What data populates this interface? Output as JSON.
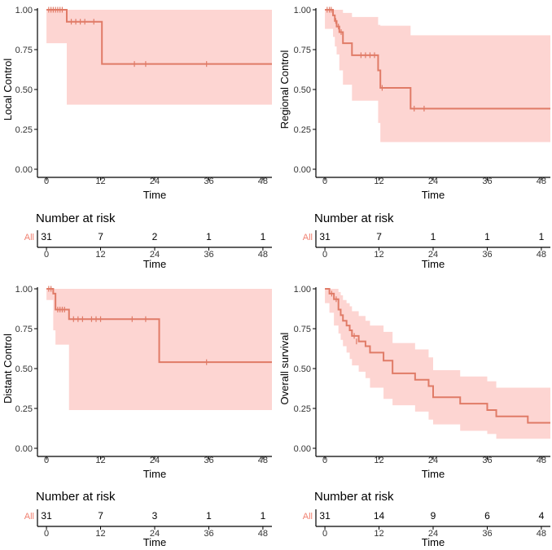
{
  "colors": {
    "line": "#E07B67",
    "band": "#FDD5D2",
    "label": "#F08070",
    "axis": "#000000"
  },
  "chart_data": [
    {
      "type": "line",
      "step": true,
      "ylabel": "Local Control",
      "xlabel": "Time",
      "xlim": [
        -2,
        50
      ],
      "ylim": [
        0,
        1
      ],
      "xticks": [
        0,
        12,
        24,
        36,
        48
      ],
      "yticks": [
        0,
        0.25,
        0.5,
        0.75,
        1
      ],
      "ytick_labels": [
        "0.00",
        "0.25",
        "0.50",
        "0.75",
        "1.00"
      ],
      "series": [
        {
          "x": [
            0,
            4.5,
            12.3,
            50
          ],
          "y": [
            1.0,
            0.925,
            0.66,
            0.66
          ]
        }
      ],
      "ci_lower": {
        "x": [
          0,
          4.5,
          12.3,
          50
        ],
        "y": [
          1.0,
          0.79,
          0.405,
          0.405
        ]
      },
      "ci_upper": {
        "x": [
          0,
          4.5,
          12.3,
          50
        ],
        "y": [
          1.0,
          1.0,
          1.0,
          1.0
        ]
      },
      "censored": {
        "x": [
          0.5,
          1,
          1.5,
          2,
          2.5,
          3,
          3.5,
          5.5,
          6.5,
          7.5,
          8.5,
          10.5,
          19.5,
          22,
          35.5
        ],
        "y": [
          1,
          1,
          1,
          1,
          1,
          1,
          1,
          0.925,
          0.925,
          0.925,
          0.925,
          0.925,
          0.66,
          0.66,
          0.66
        ]
      },
      "risk_table": {
        "title": "Number at risk",
        "strata": "All",
        "times": [
          0,
          12,
          24,
          36,
          48
        ],
        "counts": [
          "31",
          "7",
          "2",
          "1",
          "1"
        ]
      }
    },
    {
      "type": "line",
      "step": true,
      "ylabel": "Regional Control",
      "xlabel": "Time",
      "xlim": [
        -2,
        50
      ],
      "ylim": [
        0,
        1
      ],
      "xticks": [
        0,
        12,
        24,
        36,
        48
      ],
      "yticks": [
        0,
        0.25,
        0.5,
        0.75,
        1
      ],
      "ytick_labels": [
        "0.00",
        "0.25",
        "0.50",
        "0.75",
        "1.00"
      ],
      "series": [
        {
          "x": [
            0,
            1.8,
            2.2,
            2.6,
            3.2,
            4,
            6,
            11.8,
            12.3,
            19,
            50
          ],
          "y": [
            1.0,
            0.965,
            0.93,
            0.895,
            0.86,
            0.79,
            0.715,
            0.62,
            0.51,
            0.38,
            0.38
          ]
        }
      ],
      "ci_lower": {
        "x": [
          0,
          1.8,
          2.2,
          2.6,
          3.2,
          4,
          6,
          11.8,
          12.3,
          19,
          50
        ],
        "y": [
          1.0,
          0.88,
          0.83,
          0.77,
          0.72,
          0.62,
          0.53,
          0.43,
          0.29,
          0.17,
          0.17
        ]
      },
      "ci_upper": {
        "x": [
          0,
          1.8,
          2.2,
          2.6,
          3.2,
          4,
          6,
          11.8,
          12.3,
          19,
          50
        ],
        "y": [
          1.0,
          1.0,
          1.0,
          1.0,
          1.0,
          0.98,
          0.955,
          0.905,
          0.9,
          0.84,
          0.84
        ]
      },
      "censored": {
        "x": [
          0.5,
          1,
          1.4,
          2.4,
          3,
          3.6,
          8,
          9,
          10,
          11,
          12.7,
          19.8,
          22
        ],
        "y": [
          1,
          1,
          1,
          0.93,
          0.895,
          0.86,
          0.715,
          0.715,
          0.715,
          0.715,
          0.51,
          0.38,
          0.38
        ]
      },
      "risk_table": {
        "title": "Number at risk",
        "strata": "All",
        "times": [
          0,
          12,
          24,
          36,
          48
        ],
        "counts": [
          "31",
          "7",
          "1",
          "1",
          "1"
        ]
      }
    },
    {
      "type": "line",
      "step": true,
      "ylabel": "Distant Control",
      "xlabel": "Time",
      "xlim": [
        -2,
        50
      ],
      "ylim": [
        0,
        1
      ],
      "xticks": [
        0,
        12,
        24,
        36,
        48
      ],
      "yticks": [
        0,
        0.25,
        0.5,
        0.75,
        1
      ],
      "ytick_labels": [
        "0.00",
        "0.25",
        "0.50",
        "0.75",
        "1.00"
      ],
      "series": [
        {
          "x": [
            0,
            1.5,
            2,
            5,
            25,
            50
          ],
          "y": [
            1.0,
            0.97,
            0.87,
            0.81,
            0.54,
            0.54
          ]
        }
      ],
      "ci_lower": {
        "x": [
          0,
          1.5,
          2,
          5,
          25,
          50
        ],
        "y": [
          1.0,
          0.93,
          0.74,
          0.65,
          0.24,
          0.24
        ]
      },
      "ci_upper": {
        "x": [
          0,
          1.5,
          2,
          5,
          25,
          50
        ],
        "y": [
          1.0,
          1.0,
          1.0,
          1.0,
          1.0,
          1.0
        ]
      },
      "censored": {
        "x": [
          0.5,
          1,
          2.5,
          3,
          3.5,
          4,
          6,
          7,
          8,
          10,
          11,
          12,
          19,
          22,
          35.5
        ],
        "y": [
          1,
          1,
          0.87,
          0.87,
          0.87,
          0.87,
          0.81,
          0.81,
          0.81,
          0.81,
          0.81,
          0.81,
          0.81,
          0.81,
          0.54
        ]
      },
      "risk_table": {
        "title": "Number at risk",
        "strata": "All",
        "times": [
          0,
          12,
          24,
          36,
          48
        ],
        "counts": [
          "31",
          "7",
          "3",
          "1",
          "1"
        ]
      }
    },
    {
      "type": "line",
      "step": true,
      "ylabel": "Overall survival",
      "xlabel": "Time",
      "xlim": [
        -2,
        50
      ],
      "ylim": [
        0,
        1
      ],
      "xticks": [
        0,
        12,
        24,
        36,
        48
      ],
      "yticks": [
        0,
        0.25,
        0.5,
        0.75,
        1
      ],
      "ytick_labels": [
        "0.00",
        "0.25",
        "0.50",
        "0.75",
        "1.00"
      ],
      "series": [
        {
          "x": [
            0,
            1,
            2,
            3,
            3.5,
            4,
            4.8,
            5.5,
            6,
            7.5,
            9,
            10,
            13,
            15,
            20,
            23,
            24,
            30,
            36,
            38,
            45,
            50
          ],
          "y": [
            1.0,
            0.97,
            0.935,
            0.87,
            0.835,
            0.8,
            0.77,
            0.74,
            0.705,
            0.67,
            0.64,
            0.6,
            0.55,
            0.47,
            0.43,
            0.39,
            0.32,
            0.28,
            0.24,
            0.2,
            0.16,
            0.16
          ]
        }
      ],
      "ci_lower": {
        "x": [
          0,
          1,
          2,
          3,
          3.5,
          4,
          4.8,
          5.5,
          6,
          7.5,
          9,
          10,
          13,
          15,
          20,
          23,
          24,
          30,
          36,
          38,
          45,
          50
        ],
        "y": [
          1.0,
          0.91,
          0.85,
          0.77,
          0.72,
          0.68,
          0.64,
          0.6,
          0.56,
          0.52,
          0.48,
          0.44,
          0.38,
          0.31,
          0.27,
          0.23,
          0.18,
          0.15,
          0.11,
          0.09,
          0.06,
          0.06
        ]
      },
      "ci_upper": {
        "x": [
          0,
          1,
          2,
          3,
          3.5,
          4,
          4.8,
          5.5,
          6,
          7.5,
          9,
          10,
          13,
          15,
          20,
          23,
          24,
          30,
          36,
          38,
          45,
          50
        ],
        "y": [
          1.0,
          1.0,
          1.0,
          0.98,
          0.96,
          0.93,
          0.91,
          0.89,
          0.86,
          0.83,
          0.8,
          0.77,
          0.73,
          0.66,
          0.62,
          0.57,
          0.49,
          0.45,
          0.42,
          0.38,
          0.38,
          0.38
        ]
      },
      "censored": {
        "x": [
          1.5,
          2.5,
          6.5,
          7
        ],
        "y": [
          0.97,
          0.935,
          0.705,
          0.67
        ]
      },
      "risk_table": {
        "title": "Number at risk",
        "strata": "All",
        "times": [
          0,
          12,
          24,
          36,
          48
        ],
        "counts": [
          "31",
          "14",
          "9",
          "6",
          "4"
        ]
      }
    }
  ]
}
